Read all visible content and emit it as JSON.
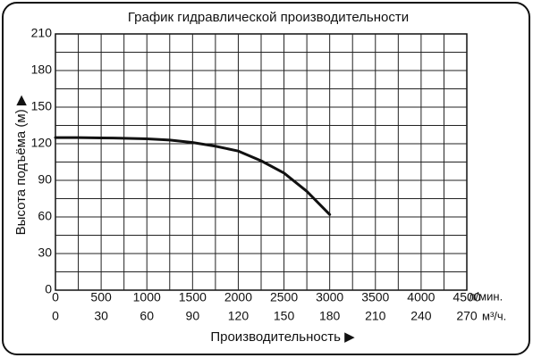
{
  "chart_data": {
    "type": "line",
    "title": "График гидравлической производительности",
    "x_label": "Производительность ▶",
    "y_label": "Высота подъёма (м) ▶",
    "x_unit": "л/мин.",
    "x2_unit": "м³/ч.",
    "x": [
      0,
      250,
      500,
      750,
      1000,
      1250,
      1500,
      1750,
      2000,
      2250,
      2500,
      2750,
      3000
    ],
    "series": [
      {
        "color": "#111111",
        "values": [
          125,
          125,
          124.8,
          124.5,
          124,
          123,
          121,
          118,
          114,
          106,
          96,
          81,
          62
        ]
      }
    ],
    "xlim": [
      0,
      4500
    ],
    "xticks": [
      0,
      500,
      1000,
      1500,
      2000,
      2500,
      3000,
      3500,
      4000,
      4500
    ],
    "x2lim": [
      0,
      270
    ],
    "x2ticks": [
      0,
      30,
      60,
      90,
      120,
      150,
      180,
      210,
      240,
      270
    ],
    "ylim": [
      0,
      210
    ],
    "yticks": [
      0,
      30,
      60,
      90,
      120,
      150,
      180,
      210
    ],
    "xgrid": [
      250,
      500,
      750,
      1000,
      1250,
      1500,
      1750,
      2000,
      2250,
      2500,
      2750,
      3000,
      3250,
      3500,
      3750,
      4000,
      4250
    ],
    "ygrid": [
      15,
      30,
      45,
      60,
      75,
      90,
      105,
      120,
      135,
      150,
      165,
      180,
      195
    ],
    "grid": true
  }
}
